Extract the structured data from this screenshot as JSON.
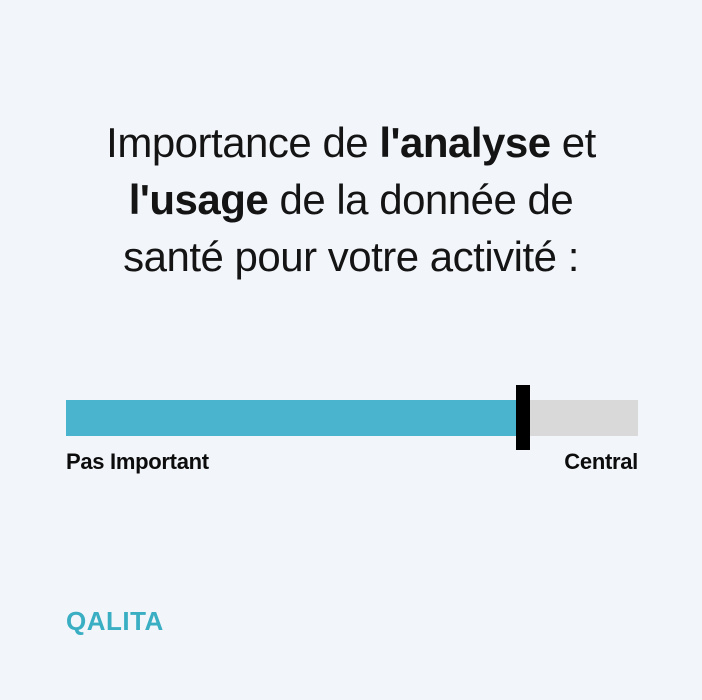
{
  "page": {
    "background": "#f2f5fa",
    "text_color": "#141414"
  },
  "title": {
    "full_text": "Importance de l'analyse et l'usage de la donnée de santé pour votre activité :",
    "lines": [
      {
        "segments": [
          {
            "text": "Importance de ",
            "bold": false
          },
          {
            "text": "l'analyse",
            "bold": true
          },
          {
            "text": " et",
            "bold": false
          }
        ]
      },
      {
        "segments": [
          {
            "text": "l'usage",
            "bold": true
          },
          {
            "text": " de la donnée de",
            "bold": false
          }
        ]
      },
      {
        "segments": [
          {
            "text": "santé pour votre activité :",
            "bold": false
          }
        ]
      }
    ]
  },
  "slider": {
    "labels": {
      "left": "Pas Important",
      "right": "Central"
    },
    "fill_percent": 78.7,
    "colors": {
      "fill": "#4ab4cf",
      "track": "#d9d9d9",
      "handle": "#000000"
    }
  },
  "logo": {
    "text": "QALITA",
    "color": "#3aaec3"
  }
}
